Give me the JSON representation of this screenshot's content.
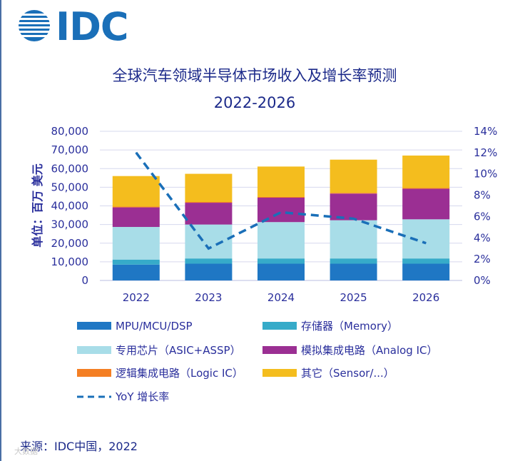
{
  "logo": {
    "text": "IDC"
  },
  "source": "来源：IDC中国，2022",
  "watermark": "大数据",
  "chart_data": {
    "type": "bar",
    "stacked": true,
    "title": "全球汽车领域半导体市场收入及增长率预测",
    "subtitle": "2022-2026",
    "ylabel": "单位：百万 美元",
    "ylim": [
      0,
      80000
    ],
    "yticks": [
      "0",
      "10,000",
      "20,000",
      "30,000",
      "40,000",
      "50,000",
      "60,000",
      "70,000",
      "80,000"
    ],
    "y2lim": [
      0,
      14
    ],
    "y2ticks": [
      "0%",
      "2%",
      "4%",
      "6%",
      "8%",
      "10%",
      "12%",
      "14%"
    ],
    "categories": [
      "2022",
      "2023",
      "2024",
      "2025",
      "2026"
    ],
    "series": [
      {
        "name": "MPU/MCU/DSP",
        "color": "#1f77c4",
        "values": [
          8500,
          9000,
          9000,
          9000,
          9000
        ]
      },
      {
        "name": "存储器（Memory）",
        "color": "#36abc9",
        "values": [
          2700,
          2800,
          2800,
          2800,
          2800
        ]
      },
      {
        "name": "专用芯片（ASIC+ASSP）",
        "color": "#a8dde8",
        "values": [
          17500,
          18200,
          19500,
          20500,
          21000
        ]
      },
      {
        "name": "模拟集成电路（Analog IC）",
        "color": "#9b2f93",
        "values": [
          10500,
          11700,
          13100,
          14300,
          16400
        ]
      },
      {
        "name": "逻辑集成电路（Logic IC）",
        "color": "#f47f24",
        "values": [
          400,
          400,
          400,
          400,
          400
        ]
      },
      {
        "name": "其它（Sensor/...）",
        "color": "#f4bd1e",
        "values": [
          16400,
          15100,
          16300,
          17800,
          17400
        ]
      }
    ],
    "line": {
      "name": "YoY 增长率",
      "color": "#1a6fb8",
      "values": [
        12.0,
        3.0,
        6.4,
        5.8,
        3.5
      ]
    }
  }
}
